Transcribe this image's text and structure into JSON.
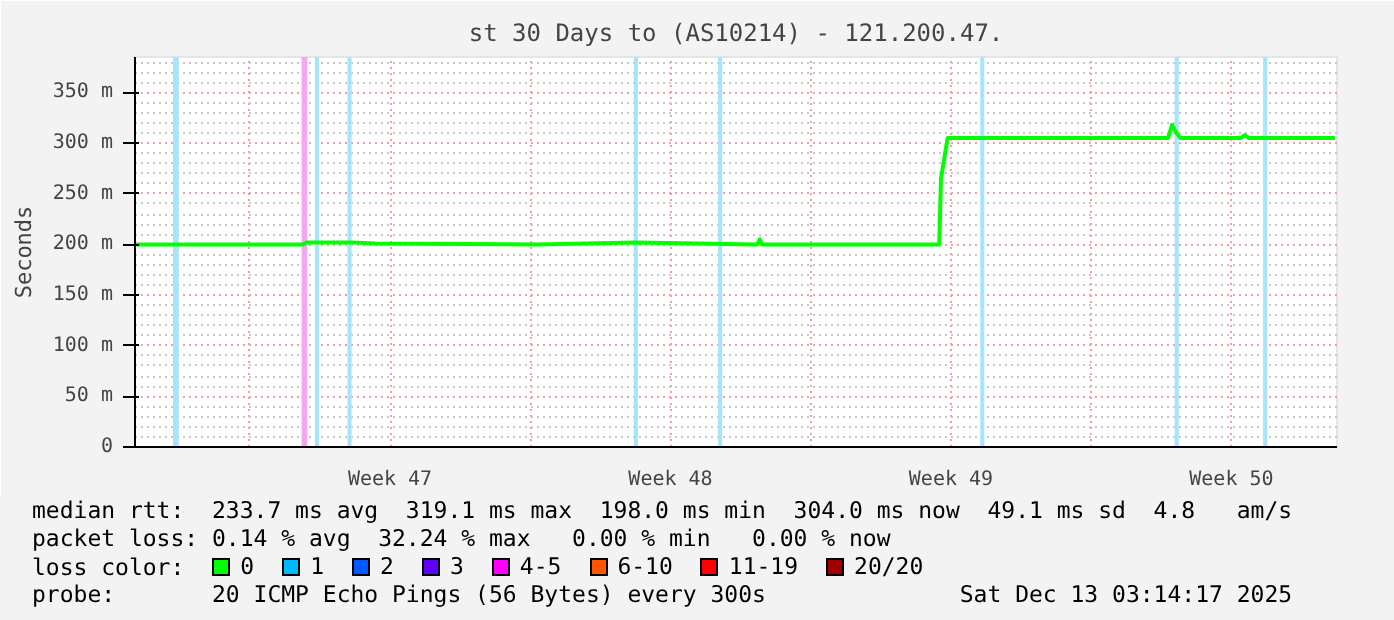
{
  "chart_data": {
    "type": "line",
    "title": "st 30 Days to (AS10214) - 121.200.47.",
    "ylabel": "Seconds",
    "xlim": [
      "2025-11-13T03:14",
      "2025-12-13T03:14"
    ],
    "ylim": [
      0,
      385
    ],
    "xticks": [
      {
        "value": "2025-11-16T00:00",
        "label": null
      },
      {
        "value": "2025-11-19T12:00",
        "label": "Week 47"
      },
      {
        "value": "2025-11-23T00:00",
        "label": null
      },
      {
        "value": "2025-11-26T12:00",
        "label": "Week 48"
      },
      {
        "value": "2025-11-30T00:00",
        "label": null
      },
      {
        "value": "2025-12-03T12:00",
        "label": "Week 49"
      },
      {
        "value": "2025-12-07T00:00",
        "label": null
      },
      {
        "value": "2025-12-10T12:00",
        "label": "Week 50"
      }
    ],
    "yticks": [
      0,
      {
        "value": 50,
        "label": "50 m"
      },
      {
        "value": 100,
        "label": "100 m"
      },
      {
        "value": 150,
        "label": "150 m"
      },
      {
        "value": 200,
        "label": "200 m"
      },
      {
        "value": 250,
        "label": "250 m"
      },
      {
        "value": 300,
        "label": "300 m"
      },
      {
        "value": 350,
        "label": "350 m"
      }
    ],
    "grid": true,
    "legend": "bottom",
    "legend_title": "loss color:",
    "line_style": "solid",
    "marker": "none",
    "series": [
      {
        "color": "#00ff00",
        "x": [
          "2025-11-13T03:14",
          "2025-11-17T08:00",
          "2025-11-17T10:00",
          "2025-11-18T13:00",
          "2025-11-19T03:00",
          "2025-11-23T03:00",
          "2025-11-25T15:00",
          "2025-11-28T16:00",
          "2025-11-28T17:30",
          "2025-11-28T19:00",
          "2025-12-03T05:00",
          "2025-12-03T06:00",
          "2025-12-03T10:00",
          "2025-12-08T22:00",
          "2025-12-09T00:30",
          "2025-12-09T03:00",
          "2025-12-09T05:30",
          "2025-12-10T17:30",
          "2025-12-10T20:00",
          "2025-12-10T22:30",
          "2025-12-13T02:00"
        ],
        "values": [
          200,
          200,
          202,
          202,
          201,
          200,
          202,
          200,
          205,
          200,
          200,
          265,
          305,
          305,
          318,
          310,
          305,
          305,
          308,
          305,
          305
        ]
      },
      {
        "name": "0",
        "color": "#00ff00",
        "values": [
          null
        ]
      },
      {
        "name": "1",
        "color": "#00b8ff",
        "values": [
          null
        ]
      },
      {
        "name": "2",
        "color": "#0059ff",
        "values": [
          null
        ]
      },
      {
        "name": "3",
        "color": "#5e00ff",
        "values": [
          null
        ]
      },
      {
        "name": "4-5",
        "color": "#ff00ff",
        "values": [
          null
        ]
      },
      {
        "name": "6-10",
        "color": "#ff5500",
        "values": [
          null
        ]
      },
      {
        "name": "11-19",
        "color": "#ff0000",
        "values": [
          null
        ]
      },
      {
        "name": "20/20",
        "color": "#a10000",
        "values": [
          null
        ]
      }
    ],
    "bands": [
      {
        "axis": "x",
        "from": "2025-11-14T02:00",
        "to": "2025-11-14T05:30",
        "color": "#a8e4fc"
      },
      {
        "axis": "x",
        "from": "2025-11-17T07:00",
        "to": "2025-11-17T10:30",
        "color": "#f4a8f4"
      },
      {
        "axis": "x",
        "from": "2025-11-17T15:00",
        "to": "2025-11-17T17:30",
        "color": "#a8e4fc"
      },
      {
        "axis": "x",
        "from": "2025-11-18T10:30",
        "to": "2025-11-18T13:00",
        "color": "#a8e4fc"
      },
      {
        "axis": "x",
        "from": "2025-11-25T14:00",
        "to": "2025-11-25T16:30",
        "color": "#a8e4fc"
      },
      {
        "axis": "x",
        "from": "2025-11-27T16:30",
        "to": "2025-11-27T19:00",
        "color": "#a8e4fc"
      },
      {
        "axis": "x",
        "from": "2025-12-04T05:30",
        "to": "2025-12-04T08:00",
        "color": "#a8e4fc"
      },
      {
        "axis": "x",
        "from": "2025-12-09T02:00",
        "to": "2025-12-09T04:30",
        "color": "#a8e4fc"
      },
      {
        "axis": "x",
        "from": "2025-12-11T07:00",
        "to": "2025-12-11T09:30",
        "color": "#a8e4fc"
      }
    ],
    "annotations": [
      "median rtt:  233.7 ms avg  319.1 ms max  198.0 ms min  304.0 ms now  49.1 ms sd  4.8   am/s",
      "packet loss: 0.14 % avg  32.24 % max   0.00 % min   0.00 % now",
      "probe:       20 ICMP Echo Pings (56 Bytes) every 300s",
      "Sat Dec 13 03:14:17 2025"
    ]
  }
}
